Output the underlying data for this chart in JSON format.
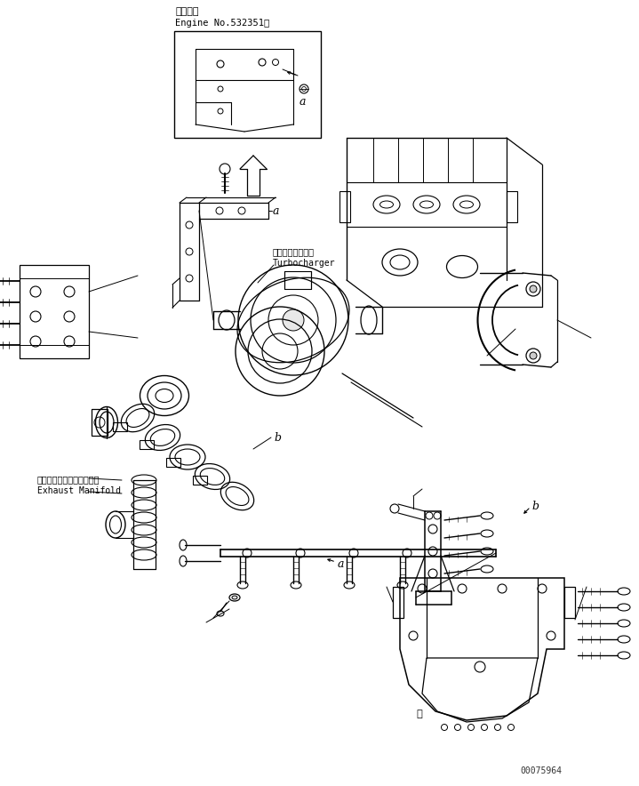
{
  "title_jp": "適用号機",
  "title_en": "Engine No.532351～",
  "label_turbocharger_jp": "ターボチャージャ",
  "label_turbocharger_en": "Turbocharger",
  "label_exhaust_jp": "エキゾーストマニホールド",
  "label_exhaust_en": "Exhaust Manifold",
  "label_a": "a",
  "label_b": "b",
  "watermark": "00075964",
  "bg_color": "#ffffff",
  "line_color": "#000000",
  "fig_width": 7.19,
  "fig_height": 8.84,
  "dpi": 100
}
